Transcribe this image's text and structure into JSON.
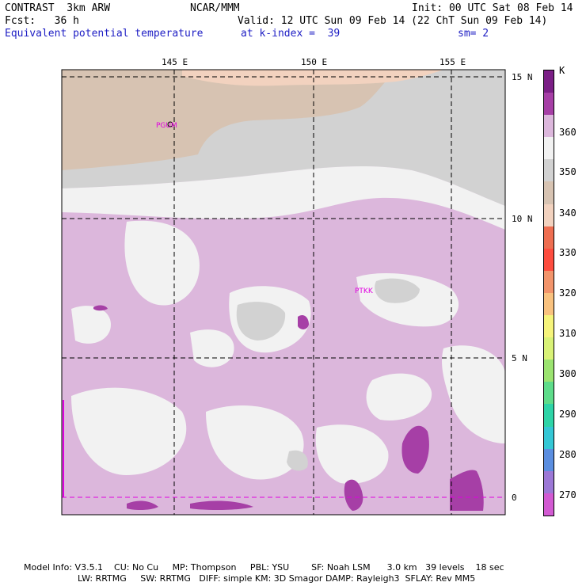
{
  "header": {
    "model": "CONTRAST  3km ARW",
    "center": "NCAR/MMM",
    "init": "Init: 00 UTC Sat 08 Feb 14",
    "fcst": "Fcst:   36 h",
    "valid": "Valid: 12 UTC Sun 09 Feb 14 (22 ChT Sun 09 Feb 14)",
    "field": "Equivalent potential temperature",
    "level": "at k-index =  39",
    "smooth": "sm= 2"
  },
  "map": {
    "lon_labels": [
      "145 E",
      "150 E",
      "155 E"
    ],
    "lat_labels": [
      "15 N",
      "10 N",
      "5 N",
      "0"
    ],
    "stations": [
      "PGUM",
      "PTKK"
    ]
  },
  "colorbar": {
    "unit": "K",
    "labels": [
      "360",
      "350",
      "340",
      "330",
      "320",
      "310",
      "300",
      "290",
      "280",
      "270"
    ],
    "colors": [
      "#7b1f86",
      "#a63fa6",
      "#dcb7dc",
      "#f2f2f2",
      "#d2d2d2",
      "#d7c3b2",
      "#f2d2bf",
      "#ee6e51",
      "#fd4d3f",
      "#f2946b",
      "#f9c27f",
      "#f6f47b",
      "#d9f277",
      "#9be370",
      "#5edc8a",
      "#2ed4a7",
      "#34c7d5",
      "#5b8ee0",
      "#9c78d6",
      "#d25ad2"
    ]
  },
  "footer": {
    "line1": "Model Info: V3.5.1    CU: No Cu     MP: Thompson     PBL: YSU        SF: Noah LSM      3.0 km   39 levels    18 sec",
    "line2": "LW: RRTMG     SW: RRTMG   DIFF: simple KM: 3D Smagor DAMP: Rayleigh3  SFLAY: Rev MM5"
  }
}
